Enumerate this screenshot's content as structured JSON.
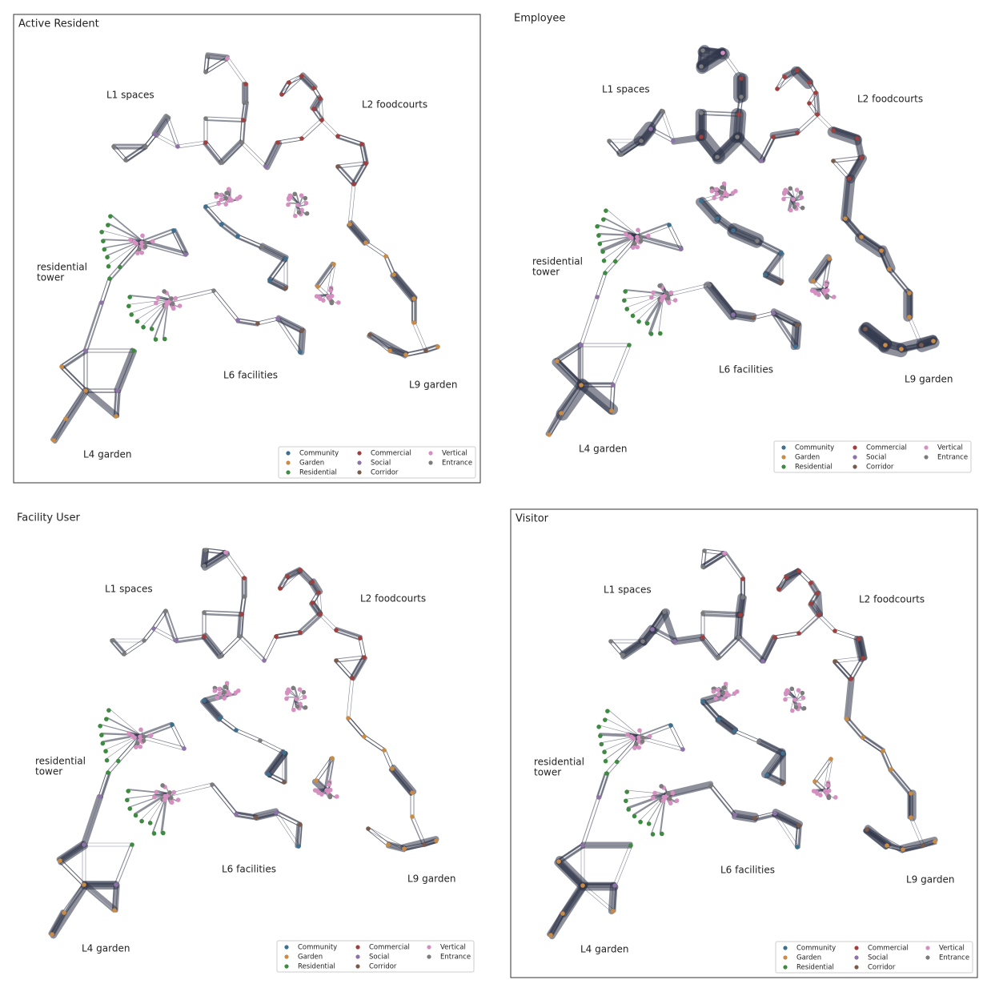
{
  "panels": [
    {
      "title": "Active Resident",
      "border": true,
      "weight": 1.0
    },
    {
      "title": "Employee",
      "border": false,
      "weight": 2.3
    },
    {
      "title": "Facility User",
      "border": false,
      "weight": 1.2
    },
    {
      "title": "Visitor",
      "border": true,
      "weight": 1.5
    }
  ],
  "regions": [
    [
      "L1 spaces"
    ],
    [
      "L2 foodcourts"
    ],
    [
      "residential",
      "tower"
    ],
    [
      "L6 facilities"
    ],
    [
      "L9 garden"
    ],
    [
      "L4 garden"
    ]
  ],
  "legend": [
    {
      "label": "Community",
      "color": "#3d6f8e"
    },
    {
      "label": "Garden",
      "color": "#c98b45"
    },
    {
      "label": "Residential",
      "color": "#3d8a40"
    },
    {
      "label": "Commercial",
      "color": "#a0403e"
    },
    {
      "label": "Social",
      "color": "#8e72a8"
    },
    {
      "label": "Corridor",
      "color": "#7a5a4a"
    },
    {
      "label": "Vertical",
      "color": "#d58fc0"
    },
    {
      "label": "Entrance",
      "color": "#7c7c7c"
    }
  ]
}
